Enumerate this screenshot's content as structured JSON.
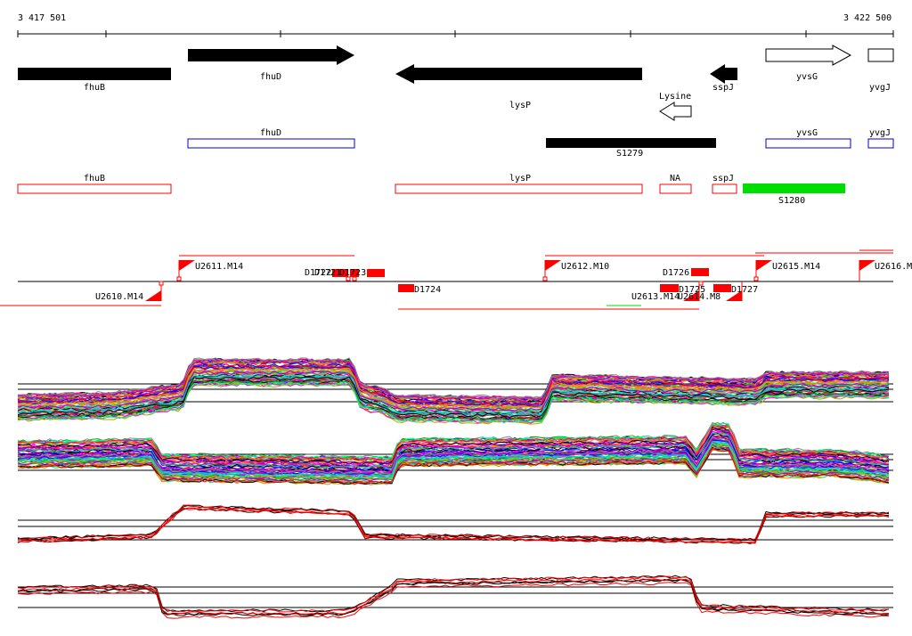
{
  "axis": {
    "start_label": "3 417 501",
    "end_label": "3 422 500",
    "start": 3417501,
    "end": 3422500
  },
  "colors": {
    "black": "#000000",
    "red": "#ff0000",
    "blue": "#0000cc",
    "green": "#00dd00",
    "gray": "#ffffff"
  },
  "genes": [
    {
      "name": "fhuB",
      "strand": "none",
      "style": "solid"
    },
    {
      "name": "fhuD",
      "strand": "+",
      "style": "solid"
    },
    {
      "name": "lysP",
      "strand": "-",
      "style": "solid"
    },
    {
      "name": "sspJ",
      "strand": "-",
      "style": "solid"
    },
    {
      "name": "yvsG",
      "strand": "+",
      "style": "outline"
    },
    {
      "name": "yvgJ",
      "strand": "none",
      "style": "outline"
    },
    {
      "name": "Lysine",
      "strand": "-",
      "style": "outline"
    }
  ],
  "blue_track": [
    {
      "name": "fhuD"
    },
    {
      "name": "yvsG"
    },
    {
      "name": "yvgJ"
    }
  ],
  "segments": [
    {
      "name": "S1279",
      "color": "#000000"
    },
    {
      "name": "S1280",
      "color": "#00dd00"
    }
  ],
  "red_track": [
    {
      "name": "fhuB"
    },
    {
      "name": "lysP"
    },
    {
      "name": "NA"
    },
    {
      "name": "sspJ"
    }
  ],
  "upstream_markers": [
    {
      "name": "U2611.M14"
    },
    {
      "name": "U2612.M10"
    },
    {
      "name": "U2615.M14"
    },
    {
      "name": "U2616.M"
    },
    {
      "name": "U2610.M14"
    },
    {
      "name": "U2613.M14"
    },
    {
      "name": "U2614.M8"
    }
  ],
  "d_markers": [
    {
      "name": "D1722"
    },
    {
      "name": "D1721"
    },
    {
      "name": "D1723"
    },
    {
      "name": "D1724"
    },
    {
      "name": "D1726"
    },
    {
      "name": "D1725"
    },
    {
      "name": "D1727"
    }
  ],
  "expression_panels": [
    {
      "name": "panel-1"
    },
    {
      "name": "panel-2"
    },
    {
      "name": "panel-3"
    },
    {
      "name": "panel-4"
    }
  ]
}
